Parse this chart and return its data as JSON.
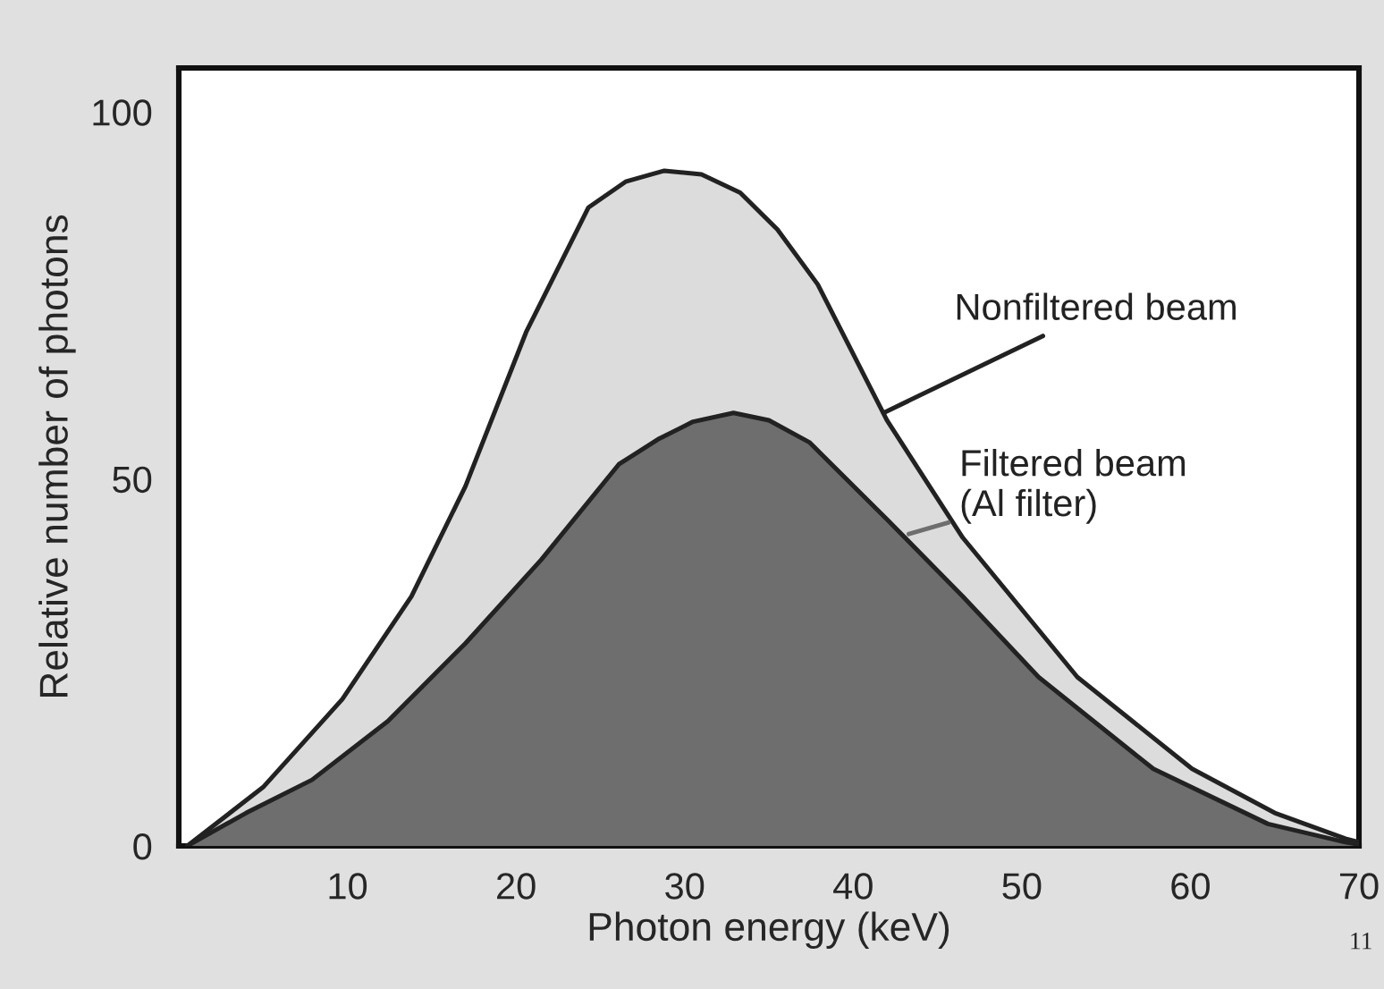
{
  "chart_data": {
    "type": "area",
    "xlabel": "Photon energy (keV)",
    "ylabel": "Relative number of photons",
    "xlim": [
      0,
      70
    ],
    "ylim": [
      0,
      106
    ],
    "xticks": [
      10,
      20,
      30,
      40,
      50,
      60,
      70
    ],
    "yticks": [
      0,
      50,
      100
    ],
    "grid": false,
    "series": [
      {
        "name": "Nonfiltered beam",
        "color": "#dcdcdc",
        "x": [
          0.5,
          5,
          9.7,
          13.8,
          17,
          20.6,
          24.3,
          26.5,
          28.8,
          31,
          33.3,
          35.5,
          37.9,
          42,
          46.5,
          53.3,
          60.1,
          65,
          69.2,
          70
        ],
        "values": [
          0,
          8,
          20,
          34,
          49,
          70,
          87,
          90.5,
          92,
          91.5,
          89,
          84,
          76.5,
          58,
          42,
          23,
          10.5,
          4.5,
          1,
          0.5
        ]
      },
      {
        "name": "Filtered beam\n(Al filter)",
        "color": "#6e6e6e",
        "x": [
          0.5,
          4,
          7.9,
          12.4,
          17,
          21.5,
          26.1,
          28.5,
          30.5,
          32.9,
          35,
          37.4,
          42,
          46.5,
          51,
          57.8,
          64.6,
          69.2,
          70
        ],
        "values": [
          0,
          4.5,
          9,
          17,
          27.6,
          39,
          52,
          55.5,
          57.8,
          59,
          58,
          55,
          44.5,
          34,
          23,
          10.5,
          3,
          0.5,
          0.2
        ]
      }
    ],
    "annotations": [
      "11"
    ]
  }
}
